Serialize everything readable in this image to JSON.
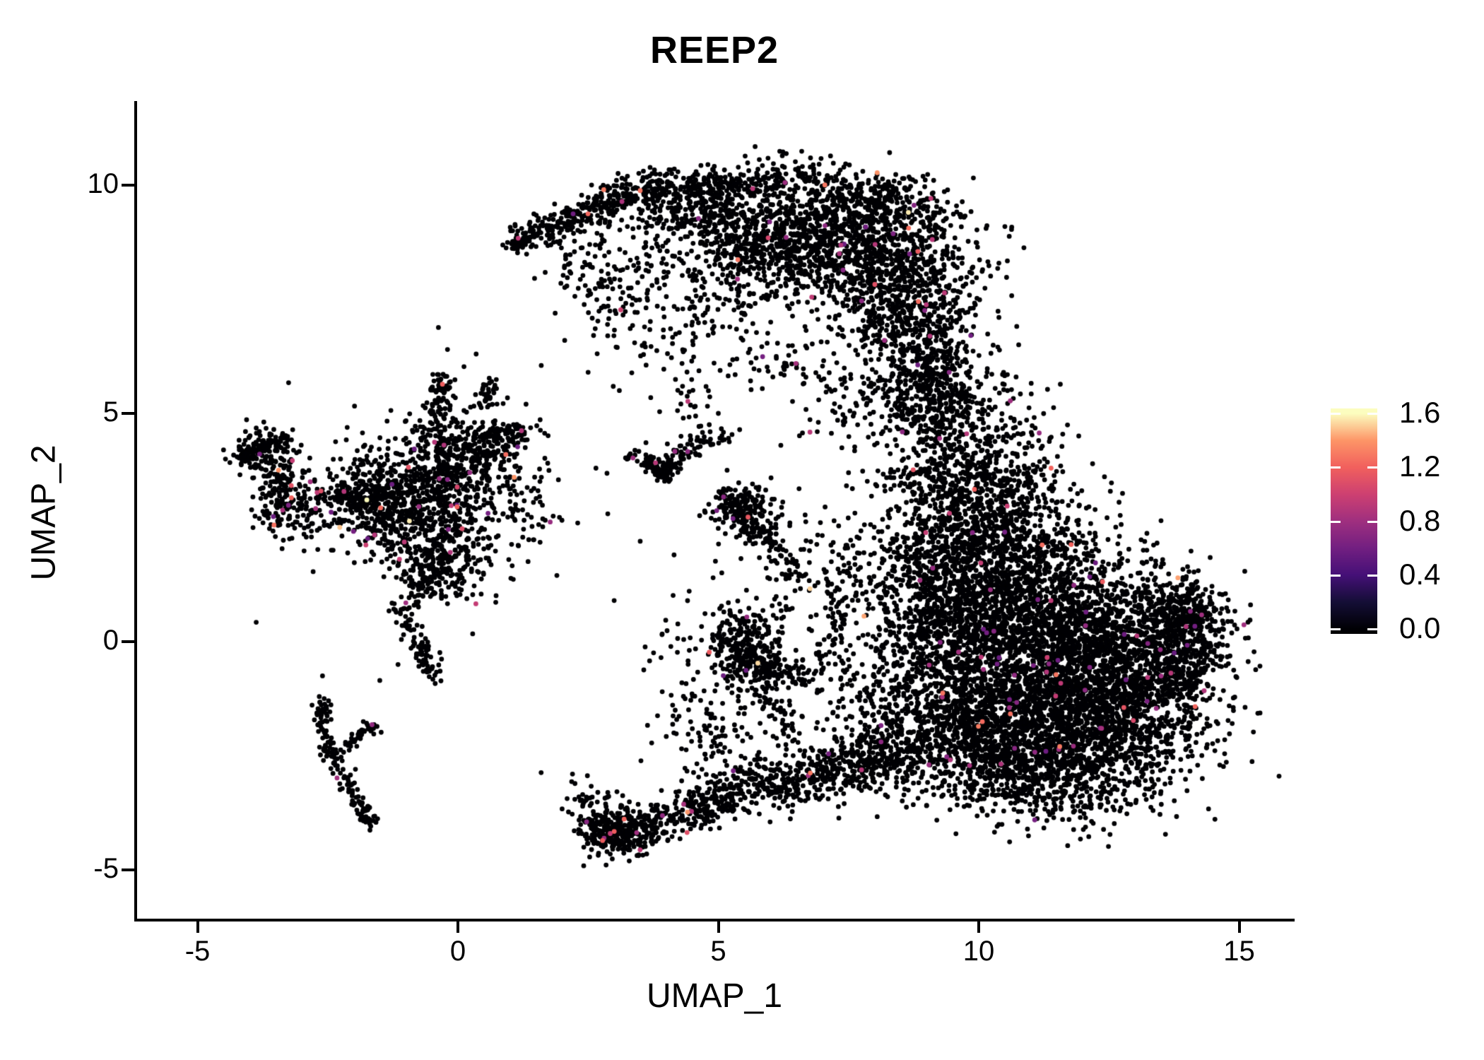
{
  "chart_data": {
    "type": "scatter",
    "title": "REEP2",
    "xlabel": "UMAP_1",
    "ylabel": "UMAP_2",
    "x_ticks": [
      -5,
      0,
      5,
      10,
      15
    ],
    "y_ticks": [
      -5,
      0,
      5,
      10
    ],
    "x_range": [
      -6.2,
      16.0
    ],
    "y_range": [
      -6.1,
      11.8
    ],
    "grid": false,
    "legend_position": "right",
    "point_radius_px": 3.4,
    "base_point_color": "#000004",
    "color_scale": {
      "min": 0.0,
      "max": 1.6,
      "tick_values": [
        0.0,
        0.4,
        0.8,
        1.2,
        1.6
      ],
      "tick_labels": [
        "0.0",
        "0.4",
        "0.8",
        "1.2",
        "1.6"
      ],
      "colormap": "magma",
      "stops": [
        [
          0.0,
          "#000004"
        ],
        [
          0.125,
          "#140e36"
        ],
        [
          0.25,
          "#451077"
        ],
        [
          0.375,
          "#721f81"
        ],
        [
          0.5,
          "#9f2f7f"
        ],
        [
          0.625,
          "#cd4071"
        ],
        [
          0.75,
          "#f1605d"
        ],
        [
          0.875,
          "#fd9567"
        ],
        [
          1.0,
          "#fcfdbf"
        ]
      ]
    },
    "seed": 42,
    "default_colored_fraction": 0.01,
    "colored_value_distribution": {
      "low": {
        "range": [
          0.55,
          0.95
        ],
        "weight": 0.72
      },
      "mid": {
        "range": [
          0.95,
          1.3
        ],
        "weight": 0.23
      },
      "high": {
        "range": [
          1.3,
          1.6
        ],
        "weight": 0.05
      }
    },
    "clusters": [
      {
        "name": "arc-left-tip-hook",
        "type": "strand",
        "x1": 1.08,
        "y1": 8.68,
        "x2": 1.35,
        "y2": 8.85,
        "jx": 0.1,
        "jy": 0.08,
        "n": 45
      },
      {
        "name": "arc-left-edge",
        "type": "strand",
        "x1": 1.3,
        "y1": 8.85,
        "x2": 3.2,
        "y2": 9.75,
        "jx": 0.22,
        "jy": 0.18,
        "n": 230
      },
      {
        "name": "arc-top-band",
        "type": "strand",
        "x1": 3.2,
        "y1": 9.8,
        "x2": 6.2,
        "y2": 10.15,
        "jx": 0.3,
        "jy": 0.22,
        "n": 330
      },
      {
        "name": "arc-top-thicken",
        "type": "gauss",
        "cx": 4.6,
        "cy": 9.3,
        "sx": 0.8,
        "sy": 0.35,
        "n": 260
      },
      {
        "name": "arc-top-right-band",
        "type": "strand",
        "x1": 6.2,
        "y1": 10.1,
        "x2": 9.2,
        "y2": 9.4,
        "jx": 0.3,
        "jy": 0.3,
        "n": 380
      },
      {
        "name": "arc-right-body",
        "type": "gauss",
        "cx": 7.4,
        "cy": 8.6,
        "sx": 1.15,
        "sy": 0.55,
        "n": 800
      },
      {
        "name": "arc-mid-body",
        "type": "gauss",
        "cx": 6.0,
        "cy": 8.9,
        "sx": 0.85,
        "sy": 0.45,
        "n": 350
      },
      {
        "name": "arc-right-lobe",
        "type": "gauss",
        "cx": 8.6,
        "cy": 7.4,
        "sx": 0.75,
        "sy": 0.8,
        "n": 650
      },
      {
        "name": "arc-right-lower",
        "type": "gauss",
        "cx": 9.0,
        "cy": 6.1,
        "sx": 0.45,
        "sy": 0.6,
        "n": 220
      },
      {
        "name": "arc-inner-sparse",
        "type": "gauss",
        "cx": 5.2,
        "cy": 7.8,
        "sx": 0.9,
        "sy": 0.6,
        "n": 150
      },
      {
        "name": "arc-hole-sparse",
        "type": "gauss",
        "cx": 3.4,
        "cy": 7.9,
        "sx": 0.8,
        "sy": 0.65,
        "n": 90
      },
      {
        "name": "arc-left-inner-diag",
        "type": "strand",
        "x1": 2.0,
        "y1": 8.6,
        "x2": 3.4,
        "y2": 7.1,
        "jx": 0.3,
        "jy": 0.3,
        "n": 70
      },
      {
        "name": "arc-under-sparse",
        "type": "gauss",
        "cx": 4.4,
        "cy": 6.6,
        "sx": 0.9,
        "sy": 0.5,
        "n": 60
      },
      {
        "name": "arc-under-right-sparse",
        "type": "strand",
        "x1": 5.6,
        "y1": 6.3,
        "x2": 6.6,
        "y2": 5.9,
        "jx": 0.3,
        "jy": 0.25,
        "n": 40
      },
      {
        "name": "arc-neck-west-sparse",
        "type": "gauss",
        "cx": 7.8,
        "cy": 5.3,
        "sx": 0.7,
        "sy": 0.6,
        "n": 90
      },
      {
        "name": "neck-strand",
        "type": "strand",
        "x1": 9.1,
        "y1": 6.2,
        "x2": 9.45,
        "y2": 4.4,
        "jx": 0.35,
        "jy": 0.45,
        "n": 200
      },
      {
        "name": "neck-lower",
        "type": "gauss",
        "cx": 9.7,
        "cy": 4.6,
        "sx": 0.55,
        "sy": 0.65,
        "n": 180
      },
      {
        "name": "neck-west-sparse",
        "type": "gauss",
        "cx": 8.65,
        "cy": 4.9,
        "sx": 0.4,
        "sy": 0.5,
        "n": 70
      },
      {
        "name": "neck-east-sparse",
        "type": "gauss",
        "cx": 10.6,
        "cy": 4.6,
        "sx": 0.5,
        "sy": 0.6,
        "n": 60
      },
      {
        "name": "rmass-top-lobe",
        "type": "gauss",
        "cx": 10.2,
        "cy": 3.2,
        "sx": 0.75,
        "sy": 0.6,
        "n": 420
      },
      {
        "name": "rmass-upperleft",
        "type": "gauss",
        "cx": 9.6,
        "cy": 2.0,
        "sx": 0.7,
        "sy": 0.8,
        "n": 520
      },
      {
        "name": "rmass-upper-mid",
        "type": "gauss",
        "cx": 10.8,
        "cy": 1.6,
        "sx": 1.0,
        "sy": 0.8,
        "n": 620
      },
      {
        "name": "rmass-west-mid",
        "type": "gauss",
        "cx": 10.1,
        "cy": 0.3,
        "sx": 0.9,
        "sy": 0.9,
        "n": 700
      },
      {
        "name": "rmass-core",
        "type": "gauss",
        "cx": 11.6,
        "cy": -0.4,
        "sx": 1.4,
        "sy": 1.0,
        "n": 1400
      },
      {
        "name": "rmass-east-upper",
        "type": "gauss",
        "cx": 12.6,
        "cy": 0.3,
        "sx": 1.0,
        "sy": 0.7,
        "n": 620
      },
      {
        "name": "rmass-lower-core",
        "type": "gauss",
        "cx": 11.2,
        "cy": -1.8,
        "sx": 1.3,
        "sy": 0.8,
        "n": 1050
      },
      {
        "name": "rmass-east-lower",
        "type": "gauss",
        "cx": 12.6,
        "cy": -1.6,
        "sx": 0.9,
        "sy": 0.8,
        "n": 700
      },
      {
        "name": "rmass-bottom",
        "type": "gauss",
        "cx": 11.4,
        "cy": -3.0,
        "sx": 0.9,
        "sy": 0.5,
        "n": 420
      },
      {
        "name": "rmass-bottomleft",
        "type": "gauss",
        "cx": 9.9,
        "cy": -2.2,
        "sx": 0.7,
        "sy": 0.7,
        "n": 350
      },
      {
        "name": "rmass-west-edge",
        "type": "gauss",
        "cx": 9.1,
        "cy": -0.7,
        "sx": 0.6,
        "sy": 1.1,
        "n": 380
      },
      {
        "name": "rmass-tip-upper",
        "type": "strand",
        "x1": 13.6,
        "y1": 1.0,
        "x2": 14.4,
        "y2": 0.35,
        "jx": 0.3,
        "jy": 0.25,
        "n": 170
      },
      {
        "name": "rmass-tip-body",
        "type": "gauss",
        "cx": 13.9,
        "cy": -0.1,
        "sx": 0.45,
        "sy": 0.5,
        "n": 200
      },
      {
        "name": "rmass-tip-lower",
        "type": "strand",
        "x1": 13.2,
        "y1": -1.3,
        "x2": 14.2,
        "y2": -0.4,
        "jx": 0.3,
        "jy": 0.3,
        "n": 150
      },
      {
        "name": "rmass-west-bridge-sparse",
        "type": "gauss",
        "cx": 8.3,
        "cy": 1.2,
        "sx": 0.6,
        "sy": 0.9,
        "n": 150
      },
      {
        "name": "west-vertical-strand",
        "type": "strand",
        "x1": 7.1,
        "y1": -0.6,
        "x2": 7.3,
        "y2": 2.0,
        "jx": 0.22,
        "jy": 0.4,
        "n": 90
      },
      {
        "name": "west-lower-sparse",
        "type": "gauss",
        "cx": 7.9,
        "cy": -1.7,
        "sx": 0.5,
        "sy": 0.8,
        "n": 140
      },
      {
        "name": "rmass-topleft-scatter",
        "type": "strand",
        "x1": 8.3,
        "y1": 3.4,
        "x2": 9.3,
        "y2": 3.6,
        "jx": 0.4,
        "jy": 0.3,
        "n": 80
      },
      {
        "name": "left-nw-blob",
        "type": "gauss",
        "cx": -3.75,
        "cy": 4.15,
        "sx": 0.3,
        "sy": 0.28,
        "n": 130,
        "colored_fraction": 0.02
      },
      {
        "name": "left-nw-strand",
        "type": "strand",
        "x1": -4.15,
        "y1": 3.95,
        "x2": -3.3,
        "y2": 4.5,
        "jx": 0.15,
        "jy": 0.12,
        "n": 60
      },
      {
        "name": "left-w-blob",
        "type": "gauss",
        "cx": -3.2,
        "cy": 2.95,
        "sx": 0.38,
        "sy": 0.33,
        "n": 160,
        "colored_fraction": 0.02
      },
      {
        "name": "left-w-connector",
        "type": "strand",
        "x1": -3.55,
        "y1": 3.8,
        "x2": -3.3,
        "y2": 3.3,
        "jx": 0.12,
        "jy": 0.12,
        "n": 40
      },
      {
        "name": "left-main-mass",
        "type": "gauss",
        "cx": -0.75,
        "cy": 3.15,
        "sx": 0.8,
        "sy": 0.7,
        "n": 650,
        "colored_fraction": 0.015
      },
      {
        "name": "left-upper-lobe",
        "type": "gauss",
        "cx": 0.15,
        "cy": 4.2,
        "sx": 0.6,
        "sy": 0.45,
        "n": 300,
        "colored_fraction": 0.015
      },
      {
        "name": "left-mid-west",
        "type": "gauss",
        "cx": -1.6,
        "cy": 3.1,
        "sx": 0.5,
        "sy": 0.4,
        "n": 200
      },
      {
        "name": "left-up-arm-1",
        "type": "strand",
        "x1": -0.4,
        "y1": 4.9,
        "x2": -0.3,
        "y2": 5.85,
        "jx": 0.13,
        "jy": 0.1,
        "n": 65
      },
      {
        "name": "left-up-arm-2",
        "type": "strand",
        "x1": 0.5,
        "y1": 5.2,
        "x2": 0.65,
        "y2": 5.75,
        "jx": 0.1,
        "jy": 0.08,
        "n": 35
      },
      {
        "name": "left-right-arm",
        "type": "strand",
        "x1": 0.55,
        "y1": 4.4,
        "x2": 1.3,
        "y2": 4.65,
        "jx": 0.15,
        "jy": 0.12,
        "n": 70
      },
      {
        "name": "left-lower-lobe",
        "type": "gauss",
        "cx": -0.3,
        "cy": 1.85,
        "sx": 0.5,
        "sy": 0.45,
        "n": 240
      },
      {
        "name": "left-halo-sparse",
        "type": "gauss",
        "cx": -0.5,
        "cy": 3.2,
        "sx": 1.4,
        "sy": 1.2,
        "n": 130
      },
      {
        "name": "left-west-arm",
        "type": "strand",
        "x1": -2.4,
        "y1": 3.4,
        "x2": -1.8,
        "y2": 3.0,
        "jx": 0.18,
        "jy": 0.15,
        "n": 60
      },
      {
        "name": "left-east-spur",
        "type": "gauss",
        "cx": 1.15,
        "cy": 2.8,
        "sx": 0.4,
        "sy": 0.5,
        "n": 45
      },
      {
        "name": "left-tail-upper",
        "type": "strand",
        "x1": -0.5,
        "y1": 1.5,
        "x2": -1.05,
        "y2": 0.6,
        "jx": 0.12,
        "jy": 0.12,
        "n": 60
      },
      {
        "name": "left-tail-lower",
        "type": "strand",
        "x1": -1.05,
        "y1": 0.6,
        "x2": -0.4,
        "y2": -0.8,
        "jx": 0.13,
        "jy": 0.13,
        "n": 80
      },
      {
        "name": "yarm-vertical",
        "type": "strand",
        "x1": -2.62,
        "y1": -1.3,
        "x2": -2.5,
        "y2": -2.3,
        "jx": 0.08,
        "jy": 0.08,
        "n": 60
      },
      {
        "name": "yarm-diagonal",
        "type": "strand",
        "x1": -2.5,
        "y1": -2.3,
        "x2": -1.65,
        "y2": -4.05,
        "jx": 0.1,
        "jy": 0.1,
        "n": 95
      },
      {
        "name": "yarm-branch",
        "type": "strand",
        "x1": -2.3,
        "y1": -2.45,
        "x2": -1.6,
        "y2": -1.8,
        "jx": 0.1,
        "jy": 0.08,
        "n": 40
      },
      {
        "name": "mid-bird-left-arm",
        "type": "strand",
        "x1": 3.35,
        "y1": 4.1,
        "x2": 3.95,
        "y2": 3.7,
        "jx": 0.12,
        "jy": 0.1,
        "n": 55
      },
      {
        "name": "mid-bird-right-arm",
        "type": "strand",
        "x1": 3.95,
        "y1": 3.7,
        "x2": 4.5,
        "y2": 4.35,
        "jx": 0.12,
        "jy": 0.1,
        "n": 45
      },
      {
        "name": "mid-bird-up-arm",
        "type": "strand",
        "x1": 4.5,
        "y1": 4.35,
        "x2": 5.25,
        "y2": 4.55,
        "jx": 0.15,
        "jy": 0.12,
        "n": 35
      },
      {
        "name": "mid-bird-joint",
        "type": "gauss",
        "cx": 4.0,
        "cy": 3.7,
        "sx": 0.15,
        "sy": 0.12,
        "n": 30
      },
      {
        "name": "mid-bird-above-sparse",
        "type": "gauss",
        "cx": 4.4,
        "cy": 5.1,
        "sx": 0.5,
        "sy": 0.4,
        "n": 25
      },
      {
        "name": "mid-clump",
        "type": "gauss",
        "cx": 5.4,
        "cy": 2.95,
        "sx": 0.3,
        "sy": 0.25,
        "n": 170,
        "colored_fraction": 0.015
      },
      {
        "name": "mid-clump-tail",
        "type": "strand",
        "x1": 5.6,
        "y1": 2.6,
        "x2": 6.0,
        "y2": 2.1,
        "jx": 0.15,
        "jy": 0.12,
        "n": 60
      },
      {
        "name": "mid-clump-east-sparse",
        "type": "gauss",
        "cx": 6.3,
        "cy": 2.3,
        "sx": 0.45,
        "sy": 0.45,
        "n": 50
      },
      {
        "name": "mid-descend-sparse",
        "type": "strand",
        "x1": 6.1,
        "y1": 1.9,
        "x2": 6.6,
        "y2": 1.2,
        "jx": 0.2,
        "jy": 0.2,
        "n": 35
      },
      {
        "name": "mid-chain-sparse",
        "type": "strand",
        "x1": 6.2,
        "y1": 0.9,
        "x2": 5.9,
        "y2": 0.1,
        "jx": 0.18,
        "jy": 0.15,
        "n": 30
      },
      {
        "name": "midlow-blob",
        "type": "gauss",
        "cx": 5.55,
        "cy": -0.35,
        "sx": 0.38,
        "sy": 0.35,
        "n": 260,
        "colored_fraction": 0.015
      },
      {
        "name": "midlow-east-arm",
        "type": "strand",
        "x1": 5.9,
        "y1": -0.6,
        "x2": 6.8,
        "y2": -0.75,
        "jx": 0.2,
        "jy": 0.18,
        "n": 70
      },
      {
        "name": "midlow-top-knob",
        "type": "gauss",
        "cx": 5.3,
        "cy": 0.3,
        "sx": 0.25,
        "sy": 0.25,
        "n": 60
      },
      {
        "name": "midlow-trail-down",
        "type": "strand",
        "x1": 5.9,
        "y1": -1.1,
        "x2": 6.4,
        "y2": -1.9,
        "jx": 0.2,
        "jy": 0.2,
        "n": 45
      },
      {
        "name": "mid-west-sparse",
        "type": "gauss",
        "cx": 4.6,
        "cy": 0.3,
        "sx": 0.6,
        "sy": 0.8,
        "n": 45
      },
      {
        "name": "bottom-tip-dense",
        "type": "gauss",
        "cx": 3.0,
        "cy": -4.15,
        "sx": 0.3,
        "sy": 0.3,
        "n": 200,
        "colored_fraction": 0.02
      },
      {
        "name": "bottom-tip-edge",
        "type": "strand",
        "x1": 2.6,
        "y1": -3.9,
        "x2": 3.4,
        "y2": -4.5,
        "jx": 0.2,
        "jy": 0.15,
        "n": 80
      },
      {
        "name": "bottom-band-1",
        "type": "strand",
        "x1": 3.3,
        "y1": -4.2,
        "x2": 5.4,
        "y2": -3.3,
        "jx": 0.3,
        "jy": 0.22,
        "n": 300,
        "colored_fraction": 0.018
      },
      {
        "name": "bottom-band-2",
        "type": "strand",
        "x1": 5.4,
        "y1": -3.3,
        "x2": 7.6,
        "y2": -2.7,
        "jx": 0.35,
        "jy": 0.28,
        "n": 330,
        "colored_fraction": 0.015
      },
      {
        "name": "bottom-band-merge",
        "type": "strand",
        "x1": 7.6,
        "y1": -2.8,
        "x2": 8.6,
        "y2": -2.4,
        "jx": 0.35,
        "jy": 0.3,
        "n": 200
      },
      {
        "name": "bottom-above-sparse",
        "type": "gauss",
        "cx": 5.2,
        "cy": -2.3,
        "sx": 0.9,
        "sy": 0.6,
        "n": 90
      },
      {
        "name": "bottom-west-sparse",
        "type": "gauss",
        "cx": 2.5,
        "cy": -3.6,
        "sx": 0.3,
        "sy": 0.3,
        "n": 35
      },
      {
        "name": "bottom-diag-trail",
        "type": "strand",
        "x1": 4.3,
        "y1": -1.4,
        "x2": 5.2,
        "y2": -2.2,
        "jx": 0.25,
        "jy": 0.25,
        "n": 50
      }
    ],
    "extra_points": [
      [
        -2.6,
        -0.75
      ],
      [
        -1.5,
        -0.85
      ],
      [
        -1.15,
        -0.5
      ],
      [
        0.35,
        6.3
      ],
      [
        -0.2,
        6.4
      ],
      [
        1.6,
        6.05
      ],
      [
        2.05,
        6.6
      ],
      [
        2.5,
        5.9
      ],
      [
        3.1,
        5.5
      ],
      [
        6.9,
        4.6
      ],
      [
        7.35,
        5.75
      ],
      [
        10.55,
        5.85
      ],
      [
        9.9,
        6.9
      ],
      [
        2.3,
        2.6
      ],
      [
        1.9,
        1.45
      ],
      [
        3.0,
        0.9
      ],
      [
        3.5,
        2.2
      ],
      [
        2.65,
        3.8
      ],
      [
        4.15,
        1.9
      ],
      [
        3.9,
        -0.35
      ],
      [
        4.3,
        -0.9
      ],
      [
        2.2,
        -2.9
      ],
      [
        1.45,
        3.05
      ],
      [
        6.55,
        3.35
      ],
      [
        7.05,
        2.95
      ],
      [
        8.1,
        6.7
      ],
      [
        1.05,
        9.0
      ],
      [
        4.9,
        1.4
      ],
      [
        5.0,
        5.0
      ],
      [
        6.2,
        4.3
      ]
    ],
    "notable_expressing_points": [
      [
        2.8,
        9.9,
        1.3
      ],
      [
        3.5,
        9.88,
        1.28
      ],
      [
        0.92,
        4.1,
        1.25
      ],
      [
        6.76,
        1.16,
        1.52
      ],
      [
        1.08,
        3.6,
        1.4
      ],
      [
        -3.2,
        3.42,
        1.12
      ],
      [
        -2.63,
        3.3,
        1.1
      ],
      [
        -0.95,
        3.82,
        1.12
      ],
      [
        5.57,
        2.73,
        1.15
      ],
      [
        5.1,
        3.17,
        0.7
      ],
      [
        4.4,
        -4.18,
        1.1
      ],
      [
        -1.0,
        0.85,
        0.8
      ],
      [
        3.15,
        9.64,
        0.85
      ],
      [
        8.19,
        6.6,
        0.78
      ],
      [
        12.05,
        0.35,
        0.75
      ]
    ]
  }
}
